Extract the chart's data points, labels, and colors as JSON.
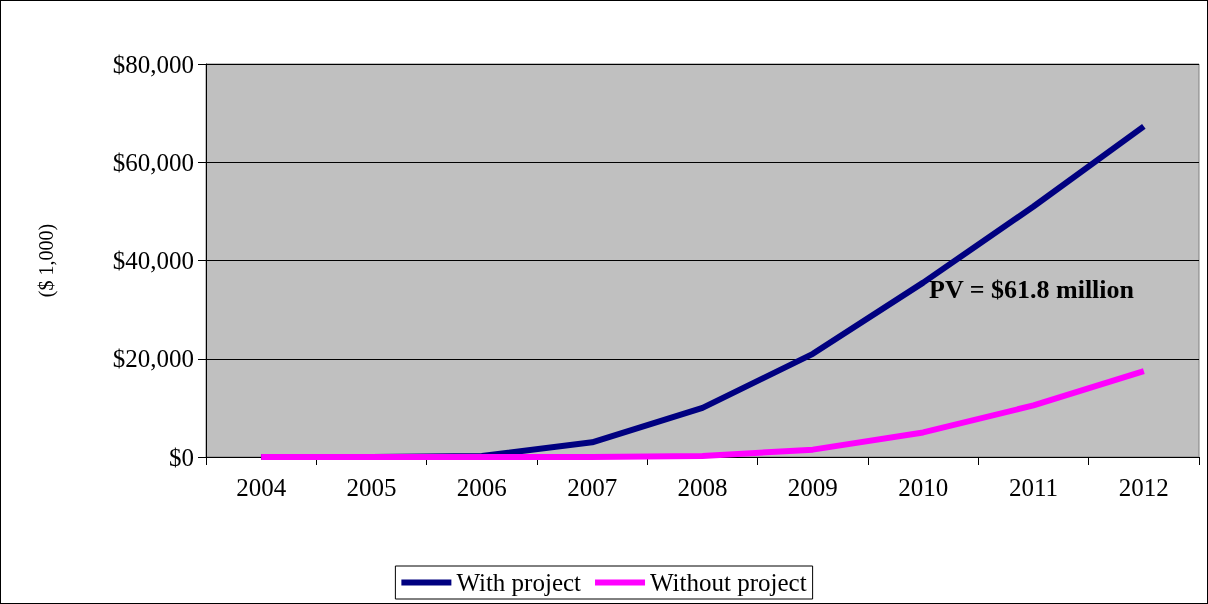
{
  "chart_data": {
    "type": "line",
    "ylabel": "($ 1,000)",
    "categories": [
      "2004",
      "2005",
      "2006",
      "2007",
      "2008",
      "2009",
      "2010",
      "2011",
      "2012"
    ],
    "series": [
      {
        "name": "With project",
        "color": "#000080",
        "values": [
          0,
          0,
          200,
          3000,
          10000,
          21000,
          35500,
          51000,
          67300
        ]
      },
      {
        "name": "Without project",
        "color": "#ff00ff",
        "values": [
          0,
          0,
          0,
          0,
          200,
          1500,
          5000,
          10500,
          17500
        ]
      }
    ],
    "ylim": [
      0,
      80000
    ],
    "yticks": [
      {
        "value": 0,
        "label": "$0"
      },
      {
        "value": 20000,
        "label": "$20,000"
      },
      {
        "value": 40000,
        "label": "$40,000"
      },
      {
        "value": 60000,
        "label": "$60,000"
      },
      {
        "value": 80000,
        "label": "$80,000"
      }
    ],
    "annotations": [
      "PV = $61.8 million"
    ],
    "grid": "y",
    "legend": "bottom",
    "marker": "none",
    "line_style": "solid"
  }
}
